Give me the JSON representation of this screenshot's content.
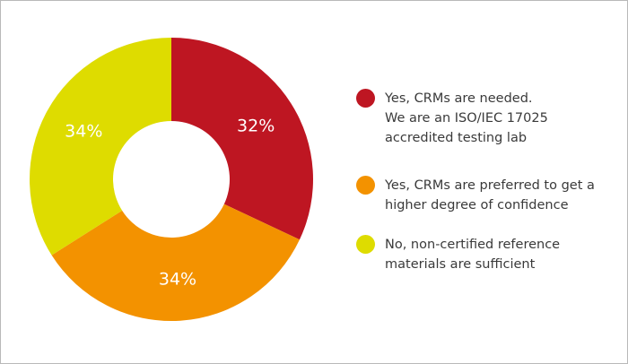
{
  "chart_data": {
    "type": "pie",
    "donut": true,
    "slices": [
      {
        "label_lines": [
          "Yes, CRMs are needed.",
          "We are an ISO/IEC 17025",
          "accredited testing lab"
        ],
        "value": 32,
        "value_label": "32%",
        "color": "#be1622"
      },
      {
        "label_lines": [
          "Yes, CRMs are preferred to get a",
          "higher degree of confidence"
        ],
        "value": 34,
        "value_label": "34%",
        "color": "#f39200"
      },
      {
        "label_lines": [
          "No, non-certified reference",
          "materials are sufficient"
        ],
        "value": 34,
        "value_label": "34%",
        "color": "#dedc00"
      }
    ],
    "legend_position": "right",
    "start": "top, clockwise"
  }
}
